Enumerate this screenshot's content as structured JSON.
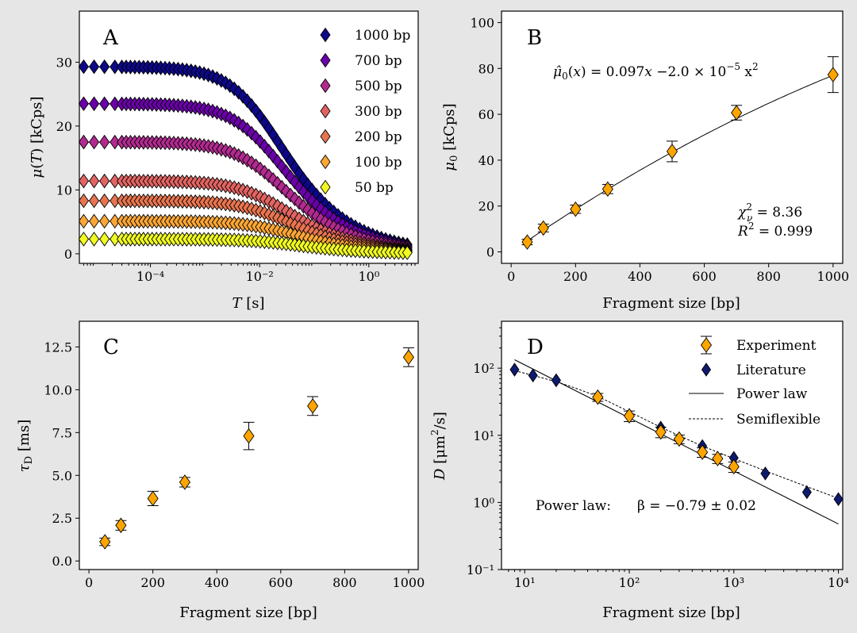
{
  "chart_data": [
    {
      "panel": "A",
      "type": "scatter",
      "x_scale": "log",
      "xlabel": "T [s]",
      "ylabel": "μ(T) [kCps]",
      "xlim": [
        5e-06,
        8
      ],
      "ylim": [
        -1.5,
        38
      ],
      "xticks": [
        "10⁻⁴",
        "10⁻²",
        "10⁰"
      ],
      "yticks": [
        "0",
        "10",
        "20",
        "30"
      ],
      "legend_position": "top-right",
      "series_params": [
        {
          "name": "1000 bp",
          "color": "#0d0887",
          "mu0": 29.3,
          "Tc": 0.012
        },
        {
          "name": "700 bp",
          "color": "#6a00a8",
          "mu0": 23.5,
          "Tc": 0.013
        },
        {
          "name": "500 bp",
          "color": "#b12a90",
          "mu0": 17.5,
          "Tc": 0.014
        },
        {
          "name": "300 bp",
          "color": "#e16462",
          "mu0": 11.4,
          "Tc": 0.016
        },
        {
          "name": "200 bp",
          "color": "#e8744f",
          "mu0": 8.3,
          "Tc": 0.018
        },
        {
          "name": "100 bp",
          "color": "#fca636",
          "mu0": 5.1,
          "Tc": 0.022
        },
        {
          "name": "50 bp",
          "color": "#f0f921",
          "mu0": 2.3,
          "Tc": 0.026
        }
      ]
    },
    {
      "panel": "B",
      "type": "scatter",
      "xlabel": "Fragment size [bp]",
      "ylabel": "μ₀ [kCps]",
      "xlim": [
        -30,
        1030
      ],
      "ylim": [
        -5,
        105
      ],
      "xticks": [
        0,
        200,
        400,
        600,
        800,
        1000
      ],
      "yticks": [
        0,
        20,
        40,
        60,
        80,
        100
      ],
      "x": [
        50,
        100,
        200,
        300,
        500,
        700,
        1000
      ],
      "y": [
        4.3,
        10.4,
        18.6,
        27.4,
        43.8,
        60.7,
        77.3
      ],
      "yerr": [
        1.2,
        1.7,
        1.8,
        2.0,
        4.5,
        3.2,
        7.8
      ],
      "fit": {
        "a": 0.097,
        "b": -2e-05
      },
      "formula": "μ̂₀(x) = 0.097x − 2.0 × 10⁻⁵ x²",
      "stats": [
        "χ²ν = 8.36",
        "R² = 0.999"
      ]
    },
    {
      "panel": "C",
      "type": "scatter",
      "xlabel": "Fragment size [bp]",
      "ylabel": "τD [ms]",
      "xlim": [
        -30,
        1030
      ],
      "ylim": [
        -0.5,
        14
      ],
      "xticks": [
        0,
        200,
        400,
        600,
        800,
        1000
      ],
      "yticks": [
        "0.0",
        "2.5",
        "5.0",
        "7.5",
        "10.0",
        "12.5"
      ],
      "x": [
        50,
        100,
        200,
        300,
        500,
        700,
        1000
      ],
      "y": [
        1.12,
        2.08,
        3.65,
        4.6,
        7.3,
        9.05,
        11.9
      ],
      "yerr": [
        0.22,
        0.28,
        0.42,
        0.28,
        0.8,
        0.55,
        0.55
      ]
    },
    {
      "panel": "D",
      "type": "scatter",
      "x_scale": "log",
      "y_scale": "log",
      "xlabel": "Fragment size [bp]",
      "ylabel": "D [μm²/s]",
      "xlim": [
        6,
        11000
      ],
      "ylim": [
        0.1,
        500
      ],
      "xticks": [
        "10¹",
        "10²",
        "10³",
        "10⁴"
      ],
      "yticks": [
        "10⁻¹",
        "10⁰",
        "10¹",
        "10²"
      ],
      "legend_position": "top-right",
      "series": [
        {
          "name": "Experiment",
          "color": "#ffa500",
          "x": [
            50,
            100,
            200,
            300,
            500,
            700,
            1000
          ],
          "y": [
            37,
            19.5,
            11.2,
            8.8,
            5.6,
            4.5,
            3.4
          ],
          "yerr": [
            5,
            3.5,
            2,
            1.3,
            0.9,
            0.7,
            0.6
          ]
        },
        {
          "name": "Literature",
          "color": "#0d1a6e",
          "x": [
            8,
            12,
            20,
            50,
            100,
            200,
            500,
            1000,
            2000,
            5000,
            10000
          ],
          "y": [
            95,
            78,
            66,
            37,
            20,
            13,
            6.9,
            4.6,
            2.7,
            1.42,
            1.12
          ]
        },
        {
          "name": "Power law",
          "style": "solid",
          "A": 690,
          "beta": -0.79
        },
        {
          "name": "Semiflexible",
          "style": "dashed"
        }
      ],
      "semiflexible_curve": {
        "x": [
          8,
          12,
          20,
          30,
          50,
          100,
          200,
          500,
          1000,
          2000,
          5000,
          10000
        ],
        "y": [
          92,
          78,
          63,
          51,
          38,
          22.5,
          13.2,
          6.9,
          4.5,
          2.95,
          1.72,
          1.15
        ]
      },
      "annotation": {
        "label": "Power law:",
        "value": "β = −0.79 ± 0.02"
      }
    }
  ]
}
